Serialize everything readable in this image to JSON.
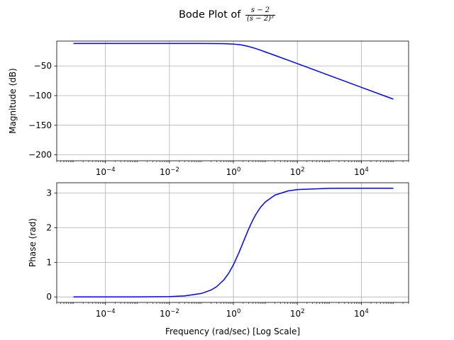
{
  "figure": {
    "title_prefix": "Bode Plot of",
    "title_fraction": {
      "numerator": "s − 2",
      "denominator": "(s − 2)³"
    }
  },
  "chart_data": [
    {
      "type": "line",
      "xscale": "log",
      "xlim": [
        3e-06,
        300000.0
      ],
      "ylim": [
        -210,
        -8
      ],
      "ylabel": "Magnitude (dB)",
      "xlabel": "",
      "grid": true,
      "xticks": [
        {
          "value": 0.0001,
          "base": "10",
          "exp": "−4"
        },
        {
          "value": 0.01,
          "base": "10",
          "exp": "−2"
        },
        {
          "value": 1,
          "base": "10",
          "exp": "0"
        },
        {
          "value": 100.0,
          "base": "10",
          "exp": "2"
        },
        {
          "value": 10000.0,
          "base": "10",
          "exp": "4"
        }
      ],
      "yticks": [
        {
          "value": -50,
          "label": "−50"
        },
        {
          "value": -100,
          "label": "−100"
        },
        {
          "value": -150,
          "label": "−150"
        },
        {
          "value": -200,
          "label": "−200"
        }
      ],
      "series": [
        {
          "color": "#0000ff",
          "x": [
            1e-05,
            0.0001,
            0.001,
            0.01,
            0.1,
            0.5,
            1,
            1.5,
            2,
            3,
            4,
            5,
            7,
            10,
            20,
            50,
            100,
            1000,
            10000.0,
            100000.0
          ],
          "y": [
            -12.04,
            -12.04,
            -12.04,
            -12.04,
            -12.06,
            -12.31,
            -13.01,
            -13.98,
            -15.05,
            -17.16,
            -19.03,
            -20.66,
            -23.27,
            -26.36,
            -32.21,
            -40.01,
            -46.02,
            -66.02,
            -86.02,
            -106.02
          ]
        }
      ]
    },
    {
      "type": "line",
      "xscale": "log",
      "xlim": [
        3e-06,
        300000.0
      ],
      "ylim": [
        -0.16,
        3.3
      ],
      "ylabel": "Phase (rad)",
      "xlabel": "Frequency (rad/sec) [Log Scale]",
      "grid": true,
      "xticks": [
        {
          "value": 0.0001,
          "base": "10",
          "exp": "−4"
        },
        {
          "value": 0.01,
          "base": "10",
          "exp": "−2"
        },
        {
          "value": 1,
          "base": "10",
          "exp": "0"
        },
        {
          "value": 100.0,
          "base": "10",
          "exp": "2"
        },
        {
          "value": 10000.0,
          "base": "10",
          "exp": "4"
        }
      ],
      "yticks": [
        {
          "value": 0,
          "label": "0"
        },
        {
          "value": 1,
          "label": "1"
        },
        {
          "value": 2,
          "label": "2"
        },
        {
          "value": 3,
          "label": "3"
        }
      ],
      "series": [
        {
          "color": "#0000ff",
          "x": [
            1e-05,
            0.0001,
            0.001,
            0.01,
            0.03,
            0.1,
            0.2,
            0.3,
            0.5,
            0.7,
            1,
            1.5,
            2,
            3,
            4,
            5,
            7,
            10,
            20,
            50,
            100,
            1000,
            10000.0,
            100000.0
          ],
          "y": [
            1e-05,
            0.0001,
            0.001,
            0.01,
            0.03,
            0.1,
            0.199,
            0.298,
            0.49,
            0.673,
            0.927,
            1.287,
            1.571,
            1.966,
            2.214,
            2.381,
            2.589,
            2.747,
            2.944,
            3.062,
            3.102,
            3.138,
            3.141,
            3.1416
          ]
        }
      ]
    }
  ]
}
